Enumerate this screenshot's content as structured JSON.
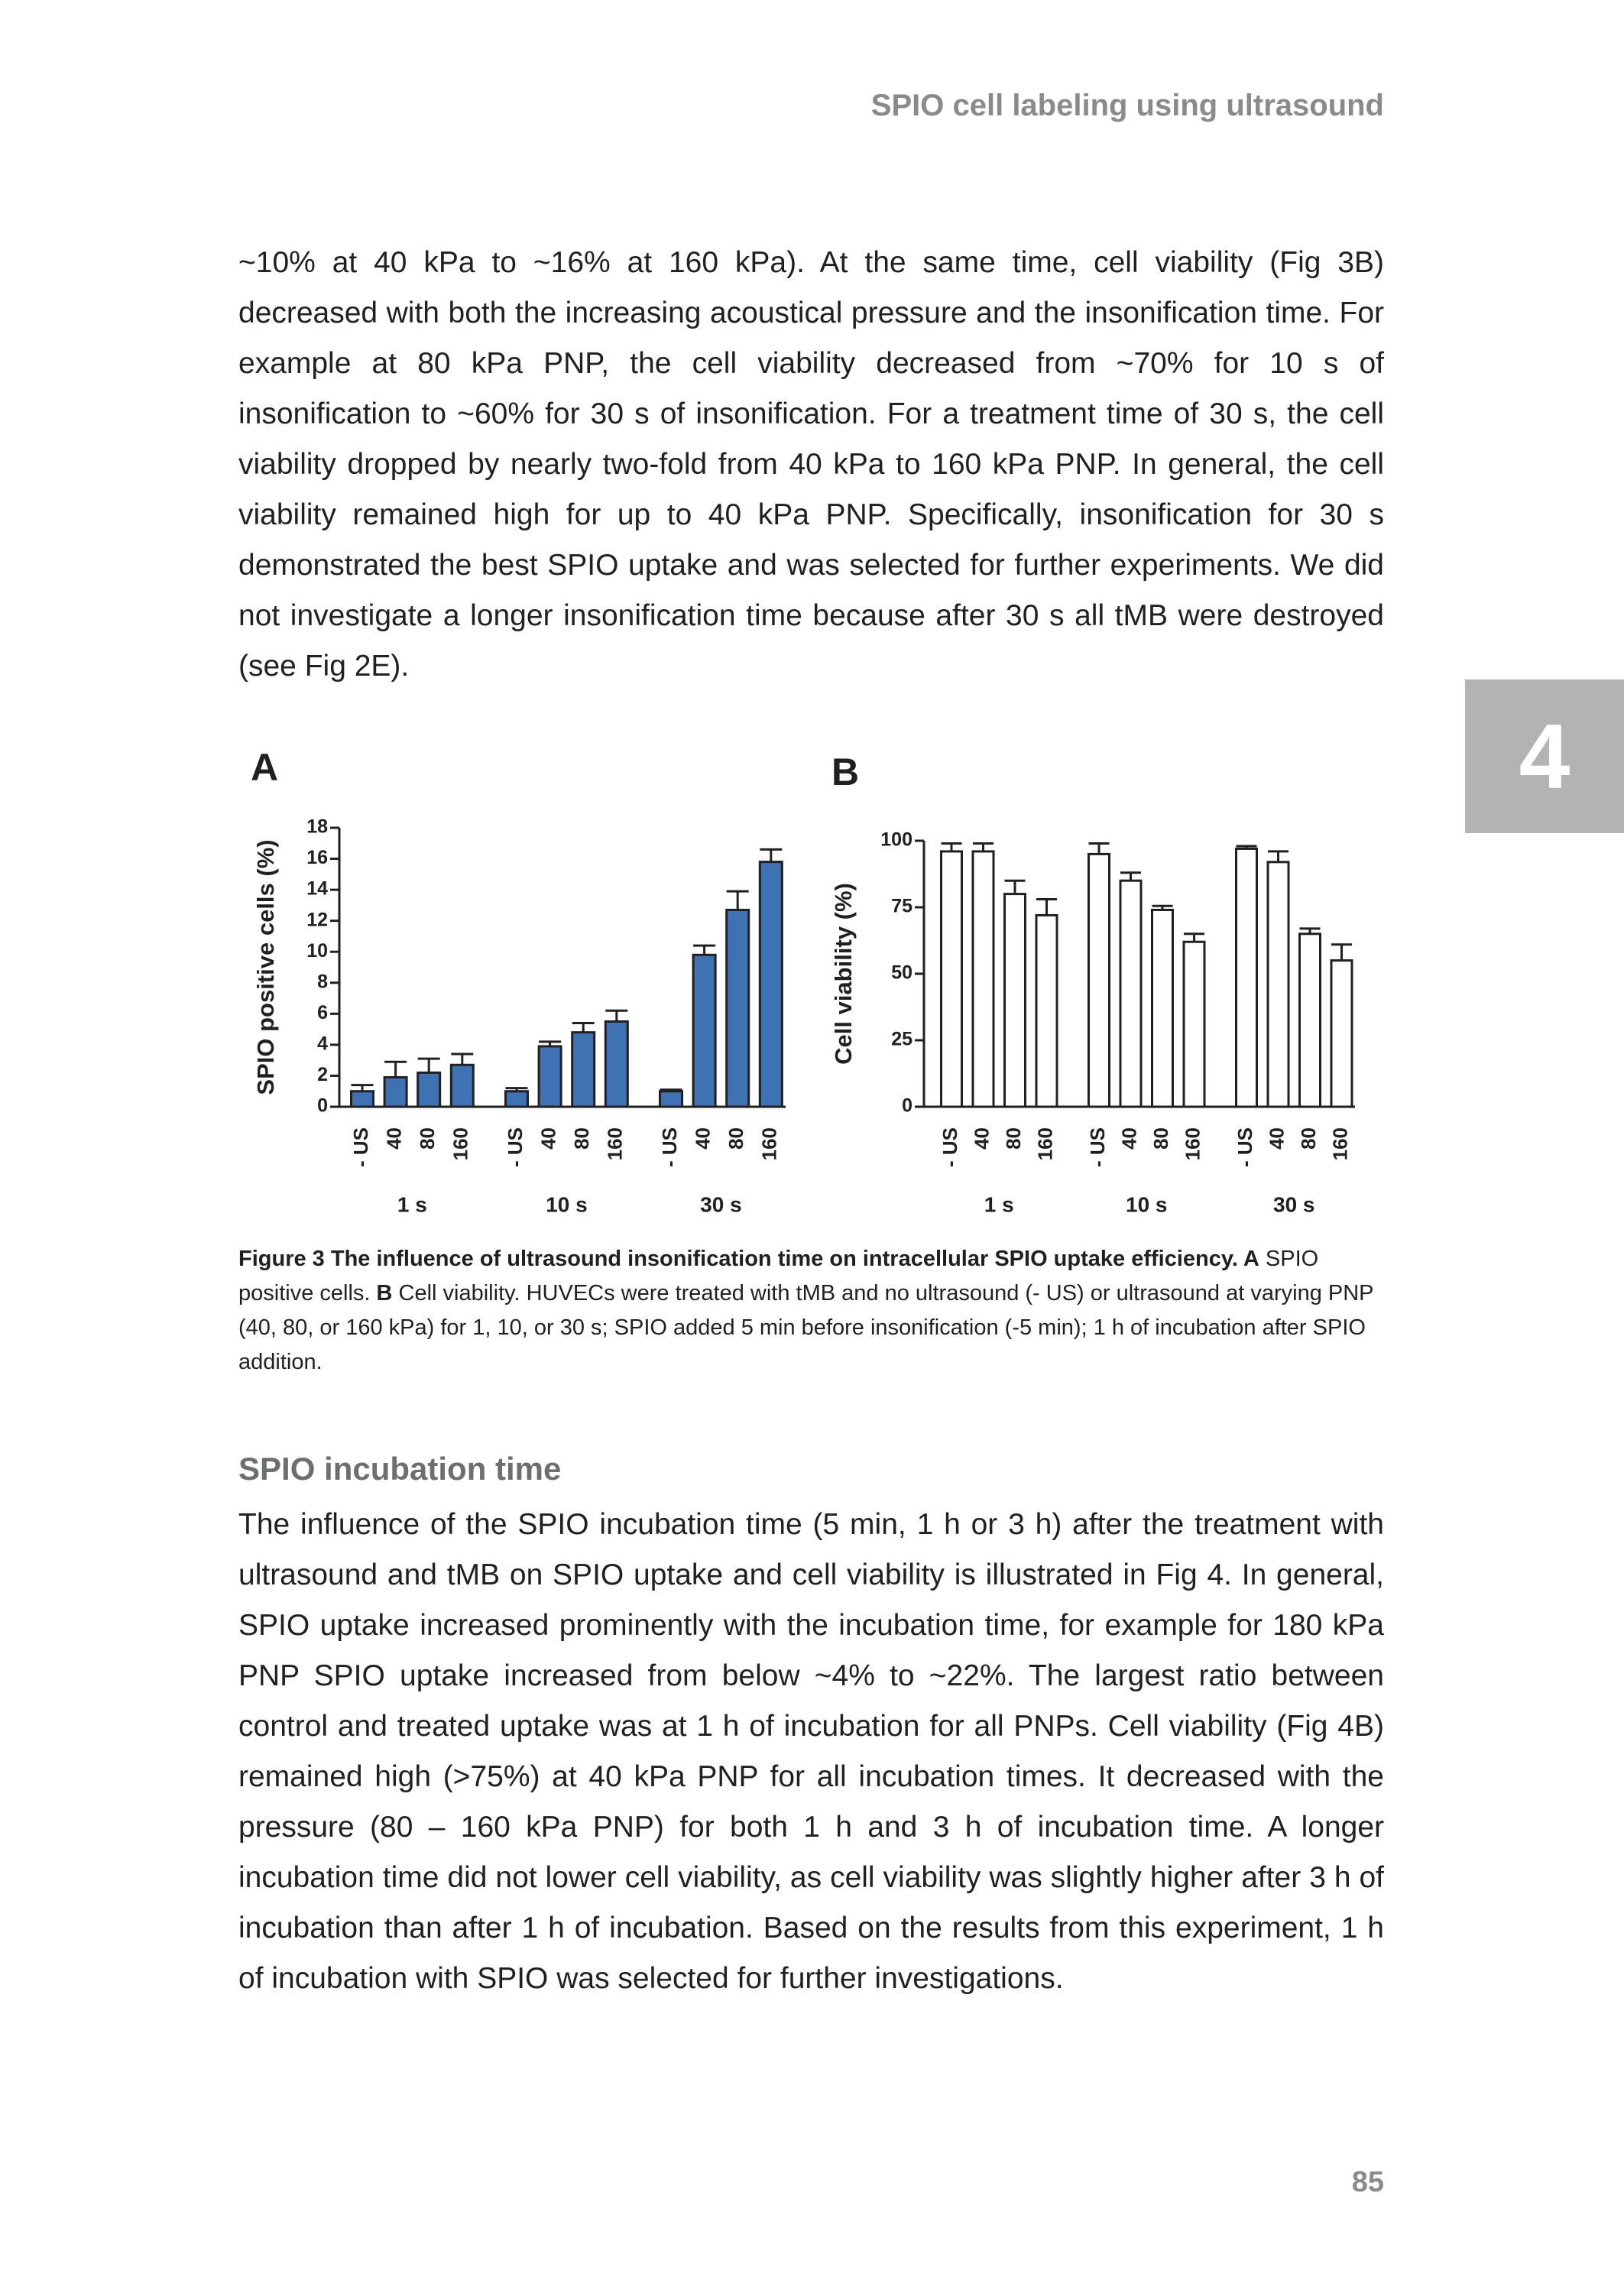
{
  "header": {
    "running_title": "SPIO cell labeling using ultrasound",
    "chapter": "4"
  },
  "paragraphs": [
    "~10% at 40 kPa to ~16% at 160 kPa). At the same time, cell viability (Fig 3B) decreased with both the increasing acoustical pressure and the insonification time. For example at 80 kPa PNP, the cell viability decreased from ~70% for 10 s of insonification to ~60% for 30 s of insonification. For a treatment time of 30 s, the cell viability dropped by nearly two-fold from 40 kPa to 160 kPa PNP. In general, the cell viability remained high for up to 40 kPa PNP. Specifically, insonification for 30 s demonstrated the best SPIO uptake and was selected for further experiments. We did not investigate a longer insonification time because after 30 s all tMB were destroyed (see Fig 2E)."
  ],
  "chart_data": [
    {
      "type": "bar",
      "panel": "A",
      "y_label": "SPIO positive cells (%)",
      "categories": [
        "- US",
        "40",
        "80",
        "160",
        "- US",
        "40",
        "80",
        "160",
        "- US",
        "40",
        "80",
        "160"
      ],
      "group_labels": [
        "1 s",
        "10 s",
        "30 s"
      ],
      "values": [
        1.0,
        1.9,
        2.2,
        2.7,
        1.0,
        3.9,
        4.8,
        5.5,
        1.0,
        9.8,
        12.7,
        15.8
      ],
      "errors": [
        0.4,
        1.0,
        0.9,
        0.7,
        0.2,
        0.3,
        0.6,
        0.7,
        0.1,
        0.6,
        1.2,
        0.8
      ],
      "color": "#3f72b3",
      "ylim": [
        0,
        18
      ],
      "yticks": [
        0,
        2,
        4,
        6,
        8,
        10,
        12,
        14,
        16,
        18
      ]
    },
    {
      "type": "bar",
      "panel": "B",
      "y_label": "Cell viability (%)",
      "categories": [
        "- US",
        "40",
        "80",
        "160",
        "- US",
        "40",
        "80",
        "160",
        "- US",
        "40",
        "80",
        "160"
      ],
      "group_labels": [
        "1 s",
        "10 s",
        "30 s"
      ],
      "values": [
        96,
        96,
        80,
        72,
        95,
        85,
        74,
        62,
        97,
        92,
        65,
        55
      ],
      "errors": [
        3,
        3,
        5,
        6,
        4,
        3,
        1.5,
        3,
        1,
        4,
        2,
        6
      ],
      "color": "#ffffff",
      "ylim": [
        0,
        100
      ],
      "yticks": [
        0,
        25,
        50,
        75,
        100
      ]
    }
  ],
  "caption": [
    {
      "text": "Figure 3 The influence of ultrasound insonification time on intracellular SPIO uptake efficiency. A",
      "bold": true
    },
    {
      "text": " SPIO positive cells. ",
      "bold": false
    },
    {
      "text": "B",
      "bold": true
    },
    {
      "text": " Cell viability. HUVECs were treated with tMB and no ultrasound (- US) or ultrasound at varying PNP (40, 80, or 160 kPa) for 1, 10, or 30 s; SPIO added 5 min before insonification (-5 min); 1 h of incubation after SPIO addition.",
      "bold": false
    }
  ],
  "section": {
    "heading": "SPIO incubation time",
    "paragraphs": [
      "The influence of the SPIO incubation time (5 min, 1 h or 3 h) after the treatment with ultrasound and tMB on SPIO uptake and cell viability is illustrated in Fig 4. In general, SPIO uptake increased prominently with the incubation time, for example for 180 kPa PNP SPIO uptake increased from below ~4% to ~22%. The largest ratio between control and treated uptake was at 1 h of incubation for all PNPs. Cell viability (Fig 4B) remained high (>75%) at 40 kPa PNP for all incubation times. It decreased with the pressure (80 – 160 kPa PNP) for both 1 h and 3 h of incubation time. A longer incubation time did not lower cell viability, as cell viability was slightly higher after 3 h of incubation than after 1 h of incubation. Based on the results from this experiment, 1 h of incubation with SPIO was selected for further investigations."
    ]
  },
  "page_number": "85"
}
